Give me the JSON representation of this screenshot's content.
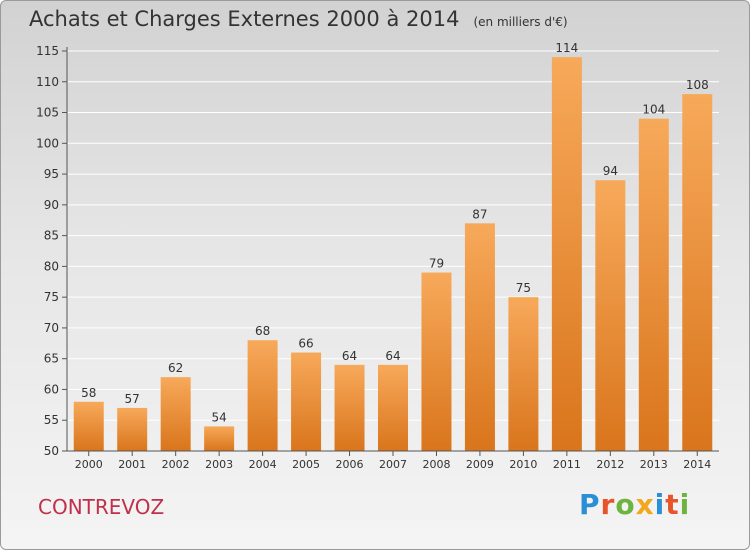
{
  "header": {
    "title": "Achats et Charges Externes 2000 à 2014",
    "unit": "(en milliers d'€)"
  },
  "footer": {
    "commune": "CONTREVOZ",
    "logo": {
      "text": "Proxiti",
      "colors": [
        "#2a8fd6",
        "#e8542a",
        "#6cb33f",
        "#f2a81d",
        "#2a8fd6",
        "#e8542a",
        "#6cb33f"
      ]
    }
  },
  "colors": {
    "bar_top": "#f7a95a",
    "bar_bottom": "#d9751c",
    "axis": "#555555"
  },
  "chart_data": {
    "type": "bar",
    "title": "Achats et Charges Externes 2000 à 2014",
    "subtitle": "(en milliers d'€)",
    "categories": [
      "2000",
      "2001",
      "2002",
      "2003",
      "2004",
      "2005",
      "2006",
      "2007",
      "2008",
      "2009",
      "2010",
      "2011",
      "2012",
      "2013",
      "2014"
    ],
    "values": [
      58,
      57,
      62,
      54,
      68,
      66,
      64,
      64,
      79,
      87,
      75,
      114,
      94,
      104,
      108
    ],
    "ylim": [
      50,
      115
    ],
    "yticks": [
      50,
      55,
      60,
      65,
      70,
      75,
      80,
      85,
      90,
      95,
      100,
      105,
      110,
      115
    ],
    "grid": true,
    "data_labels": true
  }
}
